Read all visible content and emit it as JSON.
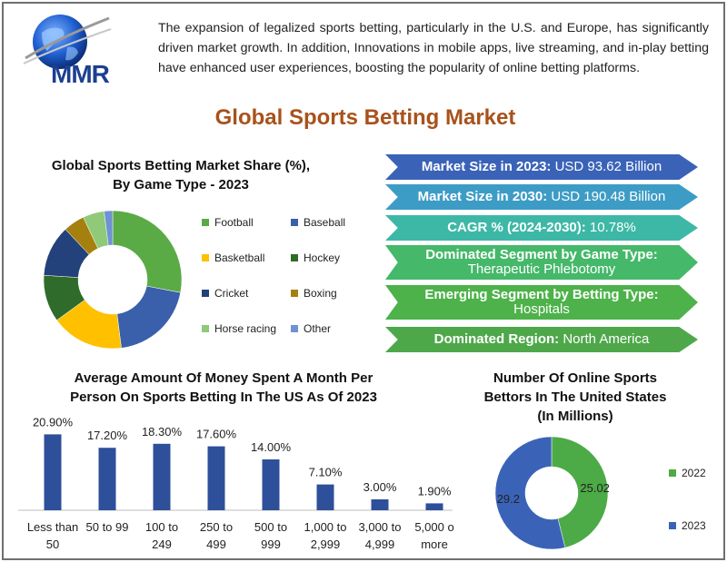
{
  "logo": {
    "text": "MMR"
  },
  "intro_text": "The expansion of legalized sports betting, particularly in the U.S. and Europe, has significantly driven market growth. In addition, Innovations in mobile apps, live streaming, and in-play betting have enhanced user experiences, boosting the popularity of online betting platforms.",
  "title": "Global Sports Betting Market",
  "colors": {
    "title": "#a8521b",
    "logo": "#1d3f8f",
    "arrows": [
      "#3a63b8",
      "#3d9cc6",
      "#3db8a7",
      "#45b86a",
      "#4db24a",
      "#4ea84a"
    ]
  },
  "highlights": [
    {
      "key": "Market Size in 2023:",
      "value": "USD 93.62 Billion"
    },
    {
      "key": "Market Size in 2030:",
      "value": "USD 190.48 Billion"
    },
    {
      "key": "CAGR % (2024-2030):",
      "value": "10.78%"
    },
    {
      "key": "Dominated Segment by Game Type:",
      "value": "Therapeutic Phlebotomy"
    },
    {
      "key": "Emerging Segment by Betting Type:",
      "value": "Hospitals"
    },
    {
      "key": "Dominated Region:",
      "value": "North America"
    }
  ],
  "chart_data": [
    {
      "type": "pie",
      "variant": "donut",
      "title": "Global Sports Betting Market Share (%), By Game Type - 2023",
      "title_line1": "Global Sports Betting Market Share (%),",
      "title_line2": "By Game Type - 2023",
      "categories": [
        "Football",
        "Baseball",
        "Basketball",
        "Hockey",
        "Cricket",
        "Boxing",
        "Horse racing",
        "Other"
      ],
      "values": [
        28,
        20,
        17,
        11,
        12,
        5,
        5,
        2
      ],
      "colors": [
        "#5aaa46",
        "#3a5fab",
        "#ffc000",
        "#2f6b2a",
        "#23417a",
        "#a6800f",
        "#90c978",
        "#6f93d1"
      ],
      "legend": "right"
    },
    {
      "type": "bar",
      "title": "Average Amount Of Money Spent A Month Per Person On Sports Betting In The US As Of 2023",
      "title_line1": "Average Amount Of Money Spent A Month Per",
      "title_line2": "Person On Sports Betting In The US As Of 2023",
      "categories": [
        [
          "Less than",
          "50"
        ],
        [
          "50 to 99",
          ""
        ],
        [
          "100 to",
          "249"
        ],
        [
          "250 to",
          "499"
        ],
        [
          "500 to",
          "999"
        ],
        [
          "1,000 to",
          "2,999"
        ],
        [
          "3,000 to",
          "4,999"
        ],
        [
          "5,000 o",
          "more"
        ]
      ],
      "values": [
        20.9,
        17.2,
        18.3,
        17.6,
        14.0,
        7.1,
        3.0,
        1.9
      ],
      "labels": [
        "20.90%",
        "17.20%",
        "18.30%",
        "17.60%",
        "14.00%",
        "7.10%",
        "3.00%",
        "1.90%"
      ],
      "color": "#2e4f9a",
      "ylim": [
        0,
        25
      ]
    },
    {
      "type": "pie",
      "variant": "donut",
      "title": "Number Of Online Sports Bettors In The United States (In Millions)",
      "title_line1": "Number Of Online Sports",
      "title_line2": "Bettors In The United States",
      "title_line3": "(In Millions)",
      "categories": [
        "2022",
        "2023"
      ],
      "values": [
        25.02,
        29.2
      ],
      "labels": [
        "25.02",
        "29.2"
      ],
      "colors": [
        "#4caa47",
        "#3a63b8"
      ],
      "legend": "right"
    }
  ]
}
